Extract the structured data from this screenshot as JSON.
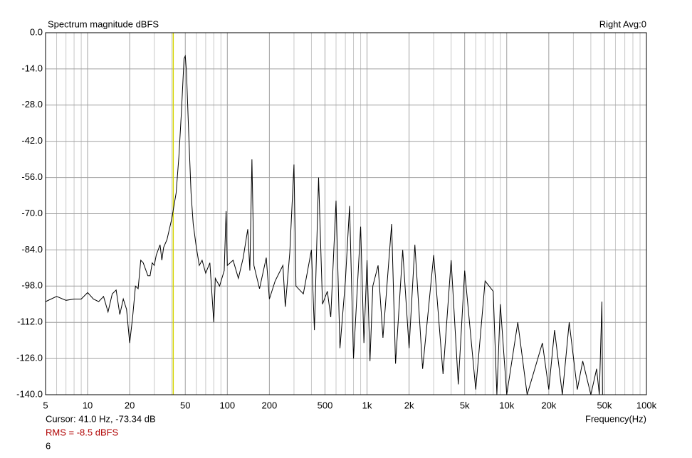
{
  "chart_data": {
    "type": "line",
    "title": "Spectrum magnitude dBFS",
    "channel_info": "Right  Avg:0",
    "xlabel": "Frequency(Hz)",
    "cursor_text": "Cursor:   41.0 Hz, -73.34 dB",
    "cursor_x": 41.0,
    "cursor_color": "#d4d400",
    "rms_text": "RMS =   -8.5 dBFS",
    "rms_color": "#b00000",
    "footer_number": "6",
    "xscale": "log",
    "grid": true,
    "xlim": [
      5,
      100000
    ],
    "ylim": [
      -140,
      0
    ],
    "xticks": [
      5,
      10,
      20,
      50,
      100,
      200,
      500,
      {
        "value": 1000,
        "label": "1k"
      },
      {
        "value": 2000,
        "label": "2k"
      },
      {
        "value": 5000,
        "label": "5k"
      },
      {
        "value": 10000,
        "label": "10k"
      },
      {
        "value": 20000,
        "label": "20k"
      },
      {
        "value": 50000,
        "label": "50k"
      },
      {
        "value": 100000,
        "label": "100k"
      }
    ],
    "xminor_ticks": [
      6,
      7,
      8,
      9,
      30,
      40,
      60,
      70,
      80,
      90,
      300,
      400,
      600,
      700,
      800,
      900,
      3000,
      4000,
      6000,
      7000,
      8000,
      9000,
      30000,
      40000,
      60000,
      70000,
      80000,
      90000
    ],
    "yticks": [
      {
        "value": 0,
        "label": "0.0"
      },
      {
        "value": -14,
        "label": "-14.0"
      },
      {
        "value": -28,
        "label": "-28.0"
      },
      {
        "value": -42,
        "label": "-42.0"
      },
      {
        "value": -56,
        "label": "-56.0"
      },
      {
        "value": -70,
        "label": "-70.0"
      },
      {
        "value": -84,
        "label": "-84.0"
      },
      {
        "value": -98,
        "label": "-98.0"
      },
      {
        "value": -112,
        "label": "-112.0"
      },
      {
        "value": -126,
        "label": "-126.0"
      },
      {
        "value": -140,
        "label": "-140.0"
      }
    ],
    "series": [
      {
        "color": "#000000",
        "x": [
          5,
          6,
          7,
          8,
          9,
          10,
          11,
          12,
          13,
          14,
          15,
          16,
          17,
          18,
          19,
          20,
          21,
          22,
          23,
          24,
          25,
          27,
          28,
          29,
          30,
          31,
          33,
          34,
          35,
          37,
          40,
          43,
          45,
          47,
          49,
          50,
          51,
          53,
          55,
          57,
          60,
          63,
          66,
          70,
          75,
          80,
          82,
          88,
          95,
          98,
          100,
          110,
          120,
          130,
          140,
          145,
          150,
          155,
          170,
          190,
          200,
          220,
          250,
          260,
          280,
          300,
          310,
          350,
          400,
          420,
          450,
          480,
          520,
          550,
          600,
          640,
          700,
          750,
          800,
          900,
          950,
          1000,
          1050,
          1100,
          1200,
          1300,
          1500,
          1600,
          1800,
          2000,
          2200,
          2500,
          3000,
          3500,
          4000,
          4500,
          5000,
          6000,
          7000,
          8000,
          8500,
          9000,
          10000,
          12000,
          14000,
          18000,
          20000,
          22000,
          25000,
          28000,
          32000,
          35000,
          40000,
          44000,
          46000,
          48000,
          48500
        ],
        "values": [
          -104,
          -102,
          -103.5,
          -103,
          -103,
          -100.5,
          -103,
          -104,
          -102,
          -108,
          -101,
          -99.5,
          -109,
          -103,
          -107,
          -120,
          -110,
          -98,
          -99,
          -88,
          -89,
          -94,
          -94,
          -89,
          -90,
          -86,
          -82,
          -88,
          -83,
          -80,
          -72,
          -62,
          -48,
          -30,
          -10,
          -9,
          -15,
          -40,
          -62,
          -74,
          -83,
          -90,
          -88,
          -93,
          -89,
          -112,
          -95,
          -98,
          -92,
          -69,
          -90,
          -88,
          -95,
          -87,
          -76,
          -92,
          -49,
          -90,
          -99,
          -87,
          -103,
          -96,
          -90,
          -106,
          -85,
          -51,
          -98,
          -101,
          -84,
          -115,
          -56,
          -105,
          -100,
          -110,
          -65,
          -122,
          -96,
          -67,
          -126,
          -75,
          -120,
          -88,
          -127,
          -98,
          -90,
          -118,
          -74,
          -128,
          -84,
          -122,
          -82,
          -130,
          -86,
          -132,
          -88,
          -136,
          -92,
          -138,
          -96,
          -100,
          -140,
          -105,
          -140,
          -112,
          -140,
          -120,
          -138,
          -115,
          -140,
          -112,
          -138,
          -127,
          -140,
          -130,
          -140,
          -104,
          -140
        ]
      }
    ]
  }
}
